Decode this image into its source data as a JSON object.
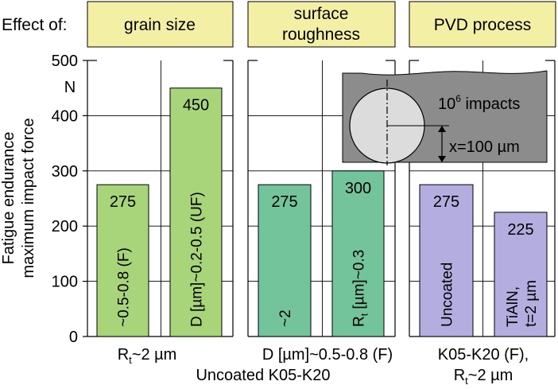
{
  "effect_label": "Effect of:",
  "panel_headers": [
    "grain size",
    "surface",
    "roughness",
    "PVD process"
  ],
  "y_axis": {
    "label_line1": "Fatigue endurance",
    "label_line2": "maximum impact force",
    "unit": "N"
  },
  "inset": {
    "impacts_base": "10",
    "impacts_exp": "6",
    "impacts_text": "impacts",
    "distance": "x=100 µm"
  },
  "bottom_labels": {
    "grain": "R",
    "grain_sub": "t",
    "grain_rest": "~2 µm",
    "rough": "D [µm]~0.5-0.8 (F)",
    "uncoated": "Uncoated K05-K20",
    "pvd_line1": "K05-K20 (F),",
    "pvd_line2_a": "R",
    "pvd_line2_sub": "t",
    "pvd_line2_b": "~2 µm"
  },
  "colors": {
    "header_fill": "#f3f0a6",
    "green": "#a8d47a",
    "teal": "#73c49a",
    "lavender": "#b4aee0",
    "inset": "#8c8c8c",
    "circle": "#dcdcdc"
  },
  "chart_data": {
    "type": "bar",
    "ylabel": "Fatigue endurance maximum impact force",
    "ylim": [
      0,
      500
    ],
    "yticks": [
      0,
      100,
      200,
      300,
      400,
      500
    ],
    "bars": [
      {
        "group": "grain size",
        "value": 275,
        "value_label": "275",
        "label": "~0.5-0.8 (F)",
        "color_key": "green"
      },
      {
        "group": "grain size",
        "value": 450,
        "value_label": "450",
        "label": "D [µm]~0.2-0.5 (UF)",
        "color_key": "green"
      },
      {
        "group": "surface roughness",
        "value": 275,
        "value_label": "275",
        "label": "~2",
        "color_key": "teal"
      },
      {
        "group": "surface roughness",
        "value": 300,
        "value_label": "300",
        "label": "R",
        "label_sub": "t",
        "label_rest": " [µm]~0.3",
        "color_key": "teal"
      },
      {
        "group": "PVD process",
        "value": 275,
        "value_label": "275",
        "label": "Uncoated",
        "color_key": "lavender"
      },
      {
        "group": "PVD process",
        "value": 225,
        "value_label": "225",
        "label": "TiAlN,",
        "label2": "t=2 µm",
        "color_key": "lavender"
      }
    ]
  }
}
